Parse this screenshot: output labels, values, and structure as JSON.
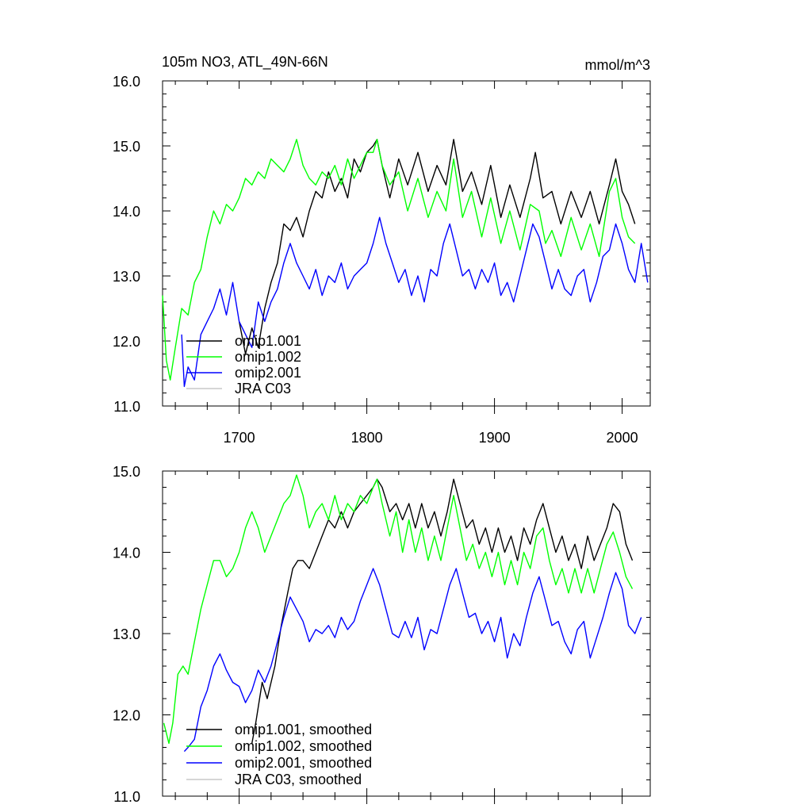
{
  "chart_data": [
    {
      "type": "line",
      "title": "105m NO3, ATL_49N-66N",
      "units": "mmol/m^3",
      "xlabel": "",
      "ylabel": "",
      "xlim": [
        1640,
        2022
      ],
      "ylim": [
        11.0,
        16.0
      ],
      "x_ticks": [
        1700,
        1800,
        1900,
        2000
      ],
      "x_tick_labels": [
        "1700",
        "1800",
        "1900",
        "2000"
      ],
      "y_ticks": [
        11.0,
        12.0,
        13.0,
        14.0,
        15.0,
        16.0
      ],
      "y_tick_labels": [
        "11.0",
        "12.0",
        "13.0",
        "14.0",
        "15.0",
        "16.0"
      ],
      "grid": false,
      "legend_position": "bottom-left",
      "series": [
        {
          "name": "omip1.001",
          "color": "#000000",
          "x": [
            1700,
            1705,
            1710,
            1715,
            1720,
            1725,
            1730,
            1735,
            1740,
            1745,
            1750,
            1755,
            1760,
            1765,
            1770,
            1775,
            1780,
            1785,
            1790,
            1795,
            1800,
            1805,
            1808,
            1812,
            1818,
            1825,
            1832,
            1840,
            1848,
            1855,
            1862,
            1868,
            1875,
            1882,
            1890,
            1897,
            1905,
            1912,
            1920,
            1928,
            1932,
            1938,
            1945,
            1952,
            1960,
            1968,
            1975,
            1982,
            1990,
            1995,
            2000,
            2005,
            2010
          ],
          "values": [
            12.3,
            11.8,
            12.2,
            11.9,
            12.5,
            12.9,
            13.2,
            13.8,
            13.7,
            13.9,
            13.6,
            14.0,
            14.3,
            14.2,
            14.6,
            14.3,
            14.5,
            14.2,
            14.8,
            14.6,
            14.9,
            15.0,
            15.1,
            14.7,
            14.2,
            14.8,
            14.4,
            14.9,
            14.3,
            14.7,
            14.4,
            15.1,
            14.3,
            14.6,
            14.1,
            14.7,
            13.9,
            14.4,
            13.9,
            14.5,
            14.9,
            14.2,
            14.3,
            13.8,
            14.3,
            13.9,
            14.3,
            13.8,
            14.4,
            14.8,
            14.3,
            14.1,
            13.8
          ]
        },
        {
          "name": "omip1.002",
          "color": "#00ff00",
          "x": [
            1640,
            1643,
            1646,
            1650,
            1655,
            1660,
            1665,
            1670,
            1675,
            1680,
            1685,
            1690,
            1695,
            1700,
            1705,
            1710,
            1715,
            1720,
            1725,
            1730,
            1735,
            1740,
            1745,
            1750,
            1755,
            1760,
            1765,
            1770,
            1775,
            1780,
            1785,
            1790,
            1795,
            1800,
            1805,
            1808,
            1812,
            1818,
            1825,
            1832,
            1840,
            1848,
            1855,
            1862,
            1868,
            1875,
            1882,
            1890,
            1897,
            1905,
            1912,
            1920,
            1928,
            1935,
            1940,
            1945,
            1952,
            1960,
            1968,
            1975,
            1982,
            1990,
            1995,
            2000,
            2005,
            2010
          ],
          "values": [
            12.7,
            11.7,
            11.4,
            11.9,
            12.5,
            12.4,
            12.9,
            13.1,
            13.6,
            14.0,
            13.8,
            14.1,
            14.0,
            14.2,
            14.5,
            14.4,
            14.6,
            14.5,
            14.8,
            14.7,
            14.6,
            14.8,
            15.1,
            14.7,
            14.5,
            14.4,
            14.6,
            14.5,
            14.7,
            14.4,
            14.8,
            14.5,
            14.7,
            14.9,
            14.9,
            15.1,
            14.7,
            14.4,
            14.6,
            14.0,
            14.5,
            13.9,
            14.3,
            14.0,
            14.8,
            13.9,
            14.3,
            13.6,
            14.2,
            13.5,
            14.0,
            13.4,
            14.1,
            14.0,
            13.5,
            13.7,
            13.3,
            13.9,
            13.4,
            13.8,
            13.3,
            14.3,
            14.5,
            13.9,
            13.6,
            13.5
          ]
        },
        {
          "name": "omip2.001",
          "color": "#0000ff",
          "x": [
            1655,
            1657,
            1660,
            1665,
            1670,
            1675,
            1680,
            1685,
            1690,
            1695,
            1700,
            1705,
            1710,
            1715,
            1720,
            1725,
            1730,
            1735,
            1740,
            1745,
            1750,
            1755,
            1760,
            1765,
            1770,
            1775,
            1780,
            1785,
            1790,
            1795,
            1800,
            1805,
            1810,
            1815,
            1820,
            1825,
            1830,
            1835,
            1840,
            1845,
            1850,
            1855,
            1860,
            1865,
            1870,
            1875,
            1880,
            1885,
            1890,
            1895,
            1900,
            1905,
            1910,
            1915,
            1920,
            1925,
            1930,
            1935,
            1940,
            1945,
            1950,
            1955,
            1960,
            1965,
            1970,
            1975,
            1980,
            1985,
            1990,
            1995,
            2000,
            2005,
            2010,
            2015,
            2020
          ],
          "values": [
            12.1,
            11.3,
            11.6,
            11.4,
            12.1,
            12.3,
            12.5,
            12.8,
            12.4,
            12.9,
            12.3,
            12.1,
            11.9,
            12.6,
            12.3,
            12.6,
            12.8,
            13.2,
            13.5,
            13.2,
            13.0,
            12.8,
            13.1,
            12.7,
            13.0,
            12.9,
            13.2,
            12.8,
            13.0,
            13.1,
            13.2,
            13.5,
            13.9,
            13.5,
            13.2,
            12.9,
            13.1,
            12.7,
            13.0,
            12.6,
            13.1,
            13.0,
            13.5,
            13.8,
            13.4,
            13.0,
            13.1,
            12.8,
            13.1,
            12.9,
            13.2,
            12.7,
            12.9,
            12.6,
            13.0,
            13.4,
            13.8,
            13.6,
            13.2,
            12.8,
            13.1,
            12.8,
            12.7,
            13.0,
            13.1,
            12.6,
            12.9,
            13.3,
            13.4,
            13.8,
            13.5,
            13.1,
            12.9,
            13.5,
            12.9
          ]
        },
        {
          "name": "JRA C03",
          "color": "#c8c8c8",
          "x": [],
          "values": []
        }
      ]
    },
    {
      "type": "line",
      "title": "",
      "xlabel": "",
      "ylabel": "",
      "xlim": [
        1640,
        2022
      ],
      "ylim": [
        11.0,
        15.0
      ],
      "x_ticks": [
        1700,
        1800,
        1900,
        2000
      ],
      "x_tick_labels": [],
      "y_ticks": [
        11.0,
        12.0,
        13.0,
        14.0,
        15.0
      ],
      "y_tick_labels": [
        "11.0",
        "12.0",
        "13.0",
        "14.0",
        "15.0"
      ],
      "grid": false,
      "legend_position": "bottom-left",
      "series": [
        {
          "name": "omip1.001, smoothed",
          "color": "#000000",
          "x": [
            1710,
            1713,
            1718,
            1722,
            1728,
            1733,
            1738,
            1742,
            1746,
            1750,
            1755,
            1760,
            1765,
            1770,
            1775,
            1780,
            1785,
            1790,
            1795,
            1800,
            1805,
            1808,
            1812,
            1818,
            1823,
            1828,
            1833,
            1838,
            1843,
            1848,
            1853,
            1858,
            1863,
            1868,
            1873,
            1878,
            1883,
            1888,
            1893,
            1898,
            1903,
            1908,
            1913,
            1918,
            1923,
            1928,
            1933,
            1938,
            1943,
            1948,
            1953,
            1958,
            1963,
            1968,
            1973,
            1978,
            1983,
            1988,
            1993,
            1998,
            2003,
            2008
          ],
          "values": [
            11.65,
            11.9,
            12.4,
            12.2,
            12.6,
            13.1,
            13.5,
            13.8,
            13.9,
            13.9,
            13.8,
            14.0,
            14.2,
            14.4,
            14.3,
            14.5,
            14.3,
            14.5,
            14.6,
            14.7,
            14.8,
            14.9,
            14.8,
            14.5,
            14.6,
            14.4,
            14.6,
            14.3,
            14.6,
            14.3,
            14.5,
            14.2,
            14.5,
            14.9,
            14.6,
            14.3,
            14.4,
            14.1,
            14.3,
            14.0,
            14.3,
            14.0,
            14.2,
            13.9,
            14.3,
            14.1,
            14.4,
            14.6,
            14.3,
            14.0,
            14.2,
            13.9,
            14.1,
            13.8,
            14.2,
            13.9,
            14.1,
            14.3,
            14.6,
            14.5,
            14.1,
            13.9
          ]
        },
        {
          "name": "omip1.002, smoothed",
          "color": "#00ff00",
          "x": [
            1641,
            1645,
            1648,
            1652,
            1656,
            1660,
            1665,
            1670,
            1675,
            1680,
            1685,
            1690,
            1695,
            1700,
            1705,
            1710,
            1715,
            1720,
            1725,
            1730,
            1735,
            1740,
            1745,
            1750,
            1755,
            1760,
            1765,
            1770,
            1775,
            1780,
            1785,
            1790,
            1795,
            1800,
            1805,
            1808,
            1812,
            1818,
            1823,
            1828,
            1833,
            1838,
            1843,
            1848,
            1853,
            1858,
            1863,
            1868,
            1873,
            1878,
            1883,
            1888,
            1893,
            1898,
            1903,
            1908,
            1913,
            1918,
            1923,
            1928,
            1933,
            1938,
            1943,
            1948,
            1953,
            1958,
            1963,
            1968,
            1973,
            1978,
            1983,
            1988,
            1993,
            1998,
            2003,
            2008
          ],
          "values": [
            11.9,
            11.65,
            11.9,
            12.5,
            12.6,
            12.5,
            12.9,
            13.3,
            13.6,
            13.9,
            13.9,
            13.7,
            13.8,
            14.0,
            14.3,
            14.5,
            14.3,
            14.0,
            14.2,
            14.4,
            14.6,
            14.7,
            14.95,
            14.7,
            14.3,
            14.5,
            14.6,
            14.4,
            14.7,
            14.4,
            14.6,
            14.5,
            14.7,
            14.6,
            14.8,
            14.9,
            14.6,
            14.2,
            14.5,
            14.0,
            14.4,
            14.0,
            14.3,
            13.9,
            14.2,
            13.9,
            14.3,
            14.7,
            14.3,
            13.9,
            14.1,
            13.8,
            14.0,
            13.7,
            14.0,
            13.6,
            13.9,
            13.6,
            14.0,
            13.8,
            14.2,
            14.3,
            13.9,
            13.6,
            13.8,
            13.5,
            13.8,
            13.5,
            13.8,
            13.5,
            13.8,
            14.1,
            14.25,
            14.0,
            13.7,
            13.55
          ]
        },
        {
          "name": "omip2.001, smoothed",
          "color": "#0000ff",
          "x": [
            1657,
            1660,
            1665,
            1670,
            1675,
            1680,
            1685,
            1690,
            1695,
            1700,
            1705,
            1710,
            1715,
            1720,
            1725,
            1730,
            1735,
            1740,
            1745,
            1750,
            1755,
            1760,
            1765,
            1770,
            1775,
            1780,
            1785,
            1790,
            1795,
            1800,
            1805,
            1810,
            1815,
            1820,
            1825,
            1830,
            1835,
            1840,
            1845,
            1850,
            1855,
            1860,
            1865,
            1870,
            1875,
            1880,
            1885,
            1890,
            1895,
            1900,
            1905,
            1910,
            1915,
            1920,
            1925,
            1930,
            1935,
            1940,
            1945,
            1950,
            1955,
            1960,
            1965,
            1970,
            1975,
            1980,
            1985,
            1990,
            1995,
            2000,
            2005,
            2010,
            2015
          ],
          "values": [
            11.55,
            11.6,
            11.7,
            12.1,
            12.3,
            12.6,
            12.75,
            12.55,
            12.4,
            12.35,
            12.15,
            12.3,
            12.55,
            12.4,
            12.6,
            12.9,
            13.2,
            13.45,
            13.3,
            13.15,
            12.9,
            13.05,
            13.0,
            13.1,
            12.95,
            13.2,
            13.05,
            13.15,
            13.4,
            13.6,
            13.8,
            13.6,
            13.3,
            13.0,
            12.95,
            13.15,
            12.95,
            13.2,
            12.8,
            13.05,
            13.0,
            13.3,
            13.6,
            13.8,
            13.5,
            13.2,
            13.25,
            13.0,
            13.15,
            12.9,
            13.2,
            12.7,
            13.0,
            12.85,
            13.2,
            13.5,
            13.7,
            13.4,
            13.1,
            13.15,
            12.9,
            12.75,
            13.05,
            13.15,
            12.7,
            12.95,
            13.2,
            13.5,
            13.75,
            13.55,
            13.1,
            13.0,
            13.2
          ]
        },
        {
          "name": "JRA C03, smoothed",
          "color": "#c8c8c8",
          "x": [],
          "values": []
        }
      ]
    }
  ]
}
